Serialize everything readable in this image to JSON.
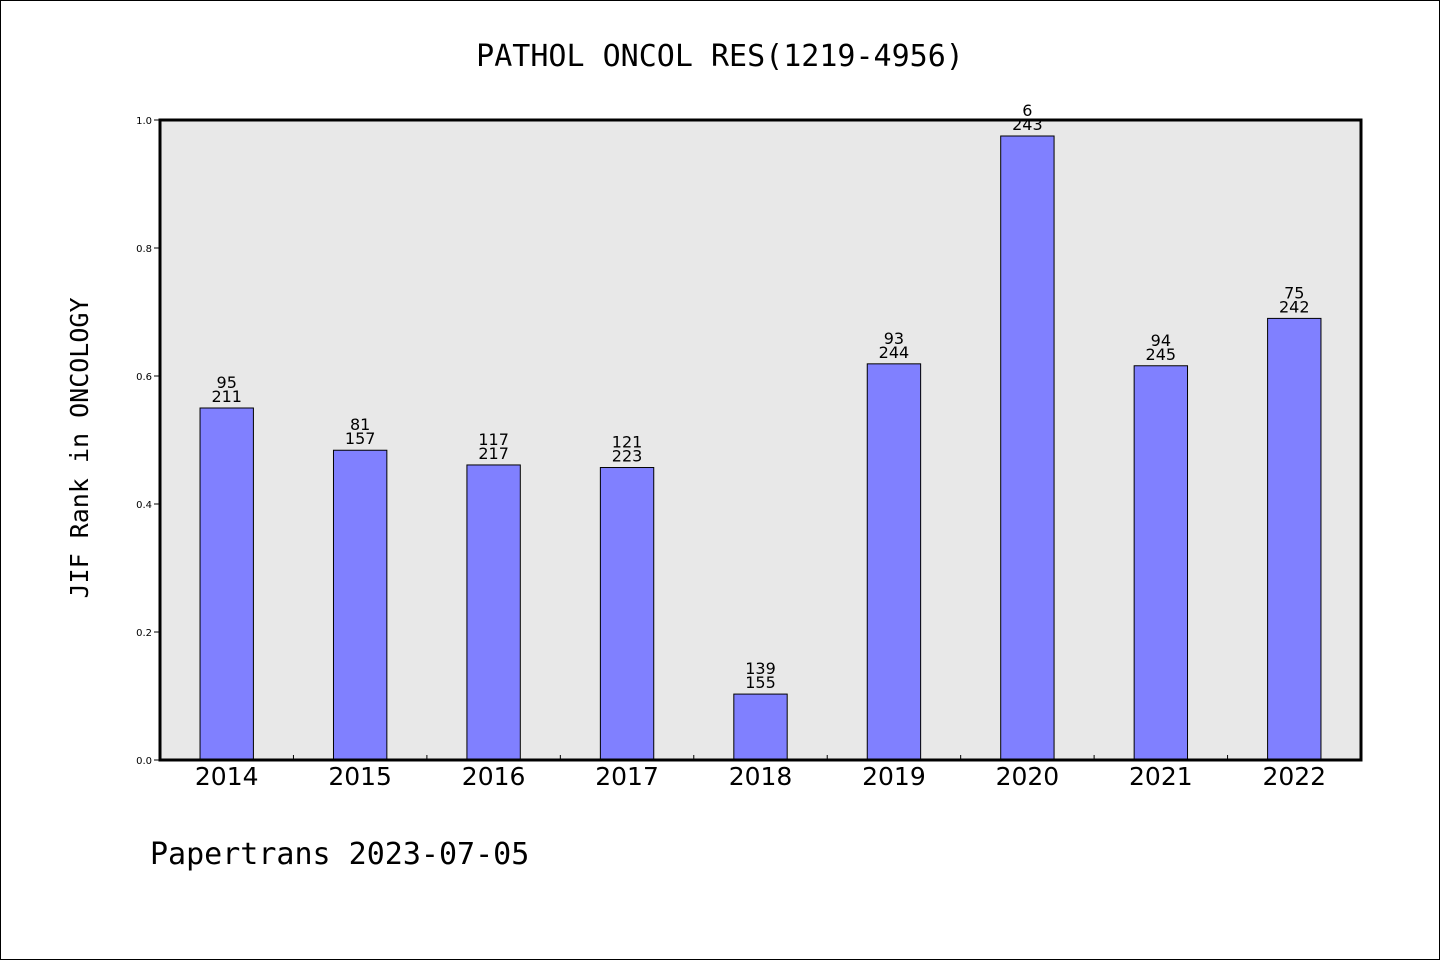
{
  "chart_data": {
    "type": "bar",
    "title": "PATHOL ONCOL RES(1219-4956)",
    "xlabel": "",
    "ylabel": "JIF Rank in ONCOLOGY",
    "ylim": [
      0.0,
      1.0
    ],
    "yticks": [
      "0.0",
      "0.2",
      "0.4",
      "0.6",
      "0.8",
      "1.0"
    ],
    "grid": false,
    "categories": [
      "2014",
      "2015",
      "2016",
      "2017",
      "2018",
      "2019",
      "2020",
      "2021",
      "2022"
    ],
    "values": [
      0.55,
      0.484,
      0.461,
      0.457,
      0.103,
      0.619,
      0.975,
      0.616,
      0.69
    ],
    "rank": [
      "95",
      "81",
      "117",
      "121",
      "139",
      "93",
      "6",
      "94",
      "75"
    ],
    "total": [
      "211",
      "157",
      "217",
      "223",
      "155",
      "244",
      "243",
      "245",
      "242"
    ],
    "bar_color": "#8080ff",
    "background_color": "#e8e8e8"
  },
  "footer": {
    "text": "Papertrans 2023-07-05"
  }
}
